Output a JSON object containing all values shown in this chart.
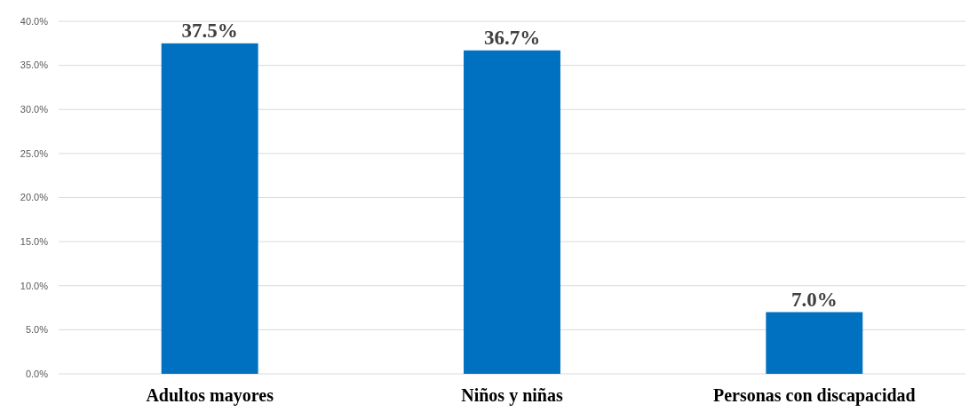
{
  "chart_data": {
    "type": "bar",
    "categories": [
      "Adultos mayores",
      "Niños y niñas",
      "Personas con discapacidad"
    ],
    "values": [
      37.5,
      36.7,
      7.0
    ],
    "color": "#0070c0",
    "value_labels": [
      "37.5%",
      "36.7%",
      "7.0%"
    ],
    "ylim": [
      0,
      40
    ],
    "yticks": [
      {
        "value": 0,
        "label": "0.0%"
      },
      {
        "value": 5,
        "label": "5.0%"
      },
      {
        "value": 10,
        "label": "10.0%"
      },
      {
        "value": 15,
        "label": "15.0%"
      },
      {
        "value": 20,
        "label": "20.0%"
      },
      {
        "value": 25,
        "label": "25.0%"
      },
      {
        "value": 30,
        "label": "30.0%"
      },
      {
        "value": 35,
        "label": "35.0%"
      },
      {
        "value": 40,
        "label": "40.0%"
      }
    ],
    "grid": "y"
  }
}
